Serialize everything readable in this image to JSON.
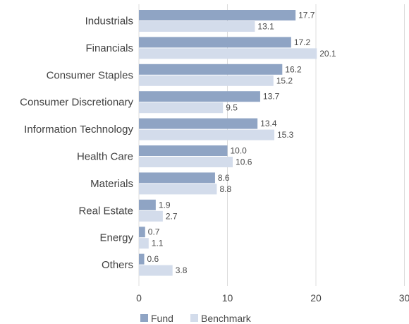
{
  "chart_data": {
    "type": "bar",
    "orientation": "horizontal",
    "categories": [
      "Industrials",
      "Financials",
      "Consumer Staples",
      "Consumer Discretionary",
      "Information Technology",
      "Health Care",
      "Materials",
      "Real Estate",
      "Energy",
      "Others"
    ],
    "series": [
      {
        "name": "Fund",
        "values": [
          17.7,
          17.2,
          16.2,
          13.7,
          13.4,
          10.0,
          8.6,
          1.9,
          0.7,
          0.6
        ],
        "value_labels": [
          "17.7",
          "17.2",
          "16.2",
          "13.7",
          "13.4",
          "10.0",
          "8.6",
          "1.9",
          "0.7",
          "0.6"
        ],
        "color": "#8fa4c4"
      },
      {
        "name": "Benchmark",
        "values": [
          13.1,
          20.1,
          15.2,
          9.5,
          15.3,
          10.6,
          8.8,
          2.7,
          1.1,
          3.8
        ],
        "value_labels": [
          "13.1",
          "20.1",
          "15.2",
          "9.5",
          "15.3",
          "10.6",
          "8.8",
          "2.7",
          "1.1",
          "3.8"
        ],
        "color": "#d3dceb"
      }
    ],
    "x_ticks": [
      0,
      10,
      20,
      30
    ],
    "xlim": [
      0,
      30
    ],
    "grid": "vertical",
    "legend": "bottom",
    "title": "",
    "xlabel": "",
    "ylabel": ""
  },
  "colors": {
    "gridline": "#dcdcdc",
    "text": "#3f3f3f"
  }
}
